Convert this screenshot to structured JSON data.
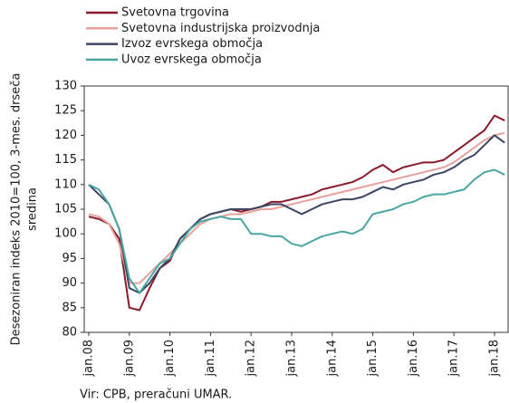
{
  "chart_data": {
    "type": "line",
    "y_label_lines": [
      "Desezoniran indeks 2010=100, 3-mes. drseča",
      "sredina"
    ],
    "source": "Vir: CPB, preračuni UMAR.",
    "categories": [
      "jan.08",
      null,
      null,
      null,
      "jan.09",
      null,
      null,
      null,
      "jan.10",
      null,
      null,
      null,
      "jan.11",
      null,
      null,
      null,
      "jan.12",
      null,
      null,
      null,
      "jan.13",
      null,
      null,
      null,
      "jan.14",
      null,
      null,
      null,
      "jan.15",
      null,
      null,
      null,
      "jan.16",
      null,
      null,
      null,
      "jan.17",
      null,
      null,
      null,
      "jan.18",
      null
    ],
    "ylim": [
      80,
      130
    ],
    "yticks": [
      80,
      85,
      90,
      95,
      100,
      105,
      110,
      115,
      120,
      125,
      130
    ],
    "legend": "top-left",
    "series": [
      {
        "name": "Svetovna trgovina",
        "color": "#8b1a2b",
        "values": [
          103.5,
          103,
          102,
          99,
          85,
          84.5,
          89,
          93,
          94.5,
          99,
          101,
          103,
          104,
          104.5,
          105,
          104.5,
          105,
          105.5,
          106.5,
          106.5,
          107,
          107.5,
          108,
          109,
          109.5,
          110,
          110.5,
          111.5,
          113,
          114,
          112.5,
          113.5,
          114,
          114.5,
          114.5,
          115,
          116.5,
          118,
          119.5,
          121,
          124,
          123
        ]
      },
      {
        "name": "Svetovna industrijska proizvodnja",
        "color": "#e8a09a",
        "values": [
          104,
          103.5,
          102,
          98,
          90,
          90,
          92,
          94,
          96,
          98,
          100,
          102,
          103,
          103.5,
          104,
          104,
          104.5,
          105,
          105,
          105.5,
          106,
          106.5,
          107,
          107.5,
          108,
          108.5,
          109,
          109.5,
          110,
          110.5,
          111,
          111.5,
          112,
          112.5,
          113,
          113.5,
          114.5,
          116,
          117.5,
          119,
          120,
          120.5
        ]
      },
      {
        "name": "Izvoz evrskega območja",
        "color": "#3a4566",
        "values": [
          110,
          108,
          106,
          101,
          89,
          88,
          90,
          93,
          95,
          99,
          101,
          103,
          104,
          104.5,
          105,
          105,
          105,
          105.5,
          106,
          106,
          105,
          104,
          105,
          106,
          106.5,
          107,
          107,
          107.5,
          108.5,
          109.5,
          109,
          110,
          110.5,
          111,
          112,
          112.5,
          113.5,
          115,
          116,
          118,
          120,
          118.5
        ]
      },
      {
        "name": "Uvoz evrskega območja",
        "color": "#4aa6a0",
        "values": [
          110,
          109,
          106,
          101,
          91,
          88,
          91,
          94,
          95,
          98,
          101,
          102.5,
          103,
          103.5,
          103,
          103,
          100,
          100,
          99.5,
          99.5,
          98,
          97.5,
          98.5,
          99.5,
          100,
          100.5,
          100,
          101,
          104,
          104.5,
          105,
          106,
          106.5,
          107.5,
          108,
          108,
          108.5,
          109,
          111,
          112.5,
          113,
          112
        ]
      }
    ]
  }
}
